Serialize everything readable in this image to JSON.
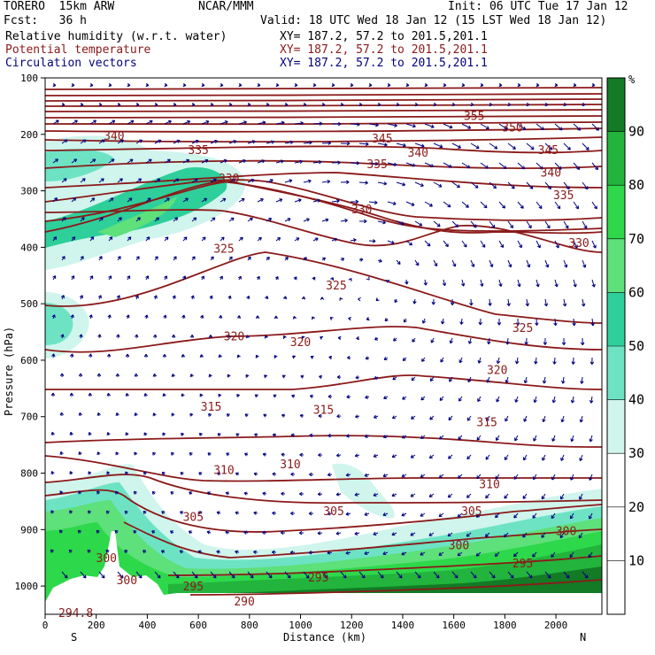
{
  "header": {
    "model": "TORERO  15km ARW",
    "center": "NCAR/MMM",
    "init": "Init: 06 UTC Tue 17 Jan 12",
    "fcst": "Fcst:   36 h",
    "valid": "Valid: 18 UTC Wed 18 Jan 12 (15 LST Wed 18 Jan 12)",
    "fields": [
      {
        "name": "Relative humidity (w.r.t. water)",
        "color": "#000000",
        "xy": "XY= 187.2, 57.2 to 201.5,201.1"
      },
      {
        "name": "Potential temperature",
        "color": "#8b1a1a",
        "xy": "XY= 187.2, 57.2 to 201.5,201.1"
      },
      {
        "name": "Circulation vectors",
        "color": "#000080",
        "xy": "XY= 187.2, 57.2 to 201.5,201.1"
      }
    ]
  },
  "chart_data": {
    "type": "heatmap",
    "xlabel": "Distance (km)",
    "ylabel": "Pressure (hPa)",
    "x_ticks": [
      0,
      200,
      400,
      600,
      800,
      1000,
      1200,
      1400,
      1600,
      1800,
      2000
    ],
    "y_ticks": [
      100,
      200,
      300,
      400,
      500,
      600,
      700,
      800,
      900,
      1000
    ],
    "xlim": [
      0,
      2180
    ],
    "ylim": [
      1050,
      100
    ],
    "x_end_labels": {
      "left": "S",
      "right": "N"
    },
    "colorbar": {
      "unit": "%",
      "levels": [
        10,
        20,
        30,
        40,
        50,
        60,
        70,
        80,
        90
      ],
      "colors": [
        "#ffffff",
        "#ffffff",
        "#ffffff",
        "#cff5ec",
        "#6de3c4",
        "#2ecf9a",
        "#5ee07a",
        "#2dd84a",
        "#22b43c",
        "#137a25"
      ]
    },
    "theta_labels": [
      {
        "text": "355",
        "x": 1680,
        "p": 170
      },
      {
        "text": "350",
        "x": 1830,
        "p": 190
      },
      {
        "text": "345",
        "x": 1320,
        "p": 210
      },
      {
        "text": "345",
        "x": 1970,
        "p": 230
      },
      {
        "text": "340",
        "x": 270,
        "p": 205
      },
      {
        "text": "340",
        "x": 1460,
        "p": 235
      },
      {
        "text": "340",
        "x": 1980,
        "p": 270
      },
      {
        "text": "335",
        "x": 600,
        "p": 230
      },
      {
        "text": "335",
        "x": 1300,
        "p": 255
      },
      {
        "text": "335",
        "x": 2030,
        "p": 310
      },
      {
        "text": "330",
        "x": 720,
        "p": 280
      },
      {
        "text": "330",
        "x": 1240,
        "p": 335
      },
      {
        "text": "330",
        "x": 2090,
        "p": 395
      },
      {
        "text": "325",
        "x": 700,
        "p": 405
      },
      {
        "text": "325",
        "x": 1140,
        "p": 470
      },
      {
        "text": "325",
        "x": 1870,
        "p": 545
      },
      {
        "text": "320",
        "x": 740,
        "p": 560
      },
      {
        "text": "320",
        "x": 1000,
        "p": 570
      },
      {
        "text": "320",
        "x": 1770,
        "p": 620
      },
      {
        "text": "315",
        "x": 650,
        "p": 685
      },
      {
        "text": "315",
        "x": 1090,
        "p": 690
      },
      {
        "text": "315",
        "x": 1730,
        "p": 712
      },
      {
        "text": "310",
        "x": 700,
        "p": 797
      },
      {
        "text": "310",
        "x": 960,
        "p": 787
      },
      {
        "text": "310",
        "x": 1740,
        "p": 822
      },
      {
        "text": "305",
        "x": 580,
        "p": 880
      },
      {
        "text": "305",
        "x": 1130,
        "p": 870
      },
      {
        "text": "305",
        "x": 1670,
        "p": 870
      },
      {
        "text": "300",
        "x": 240,
        "p": 953
      },
      {
        "text": "300",
        "x": 320,
        "p": 992
      },
      {
        "text": "300",
        "x": 1620,
        "p": 930
      },
      {
        "text": "300",
        "x": 2040,
        "p": 905
      },
      {
        "text": "295",
        "x": 580,
        "p": 1003
      },
      {
        "text": "295",
        "x": 1070,
        "p": 987
      },
      {
        "text": "295",
        "x": 1870,
        "p": 962
      },
      {
        "text": "290",
        "x": 780,
        "p": 1030
      },
      {
        "text": "294.8",
        "x": 120,
        "p": 1050
      }
    ]
  }
}
